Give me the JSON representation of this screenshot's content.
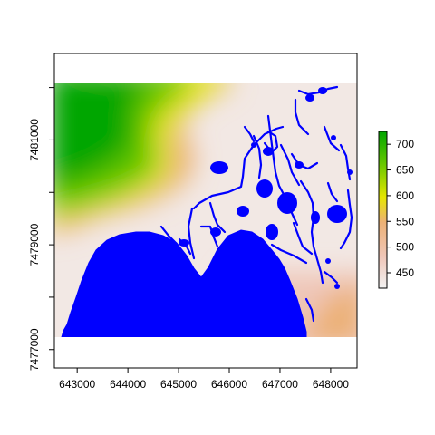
{
  "chart_data": {
    "type": "heatmap",
    "title": "",
    "xlabel": "",
    "ylabel": "",
    "xlim": [
      642550,
      648520
    ],
    "ylim": [
      7476650,
      7482650
    ],
    "x_ticks": [
      {
        "value": 643000,
        "label": "643000"
      },
      {
        "value": 644000,
        "label": "644000"
      },
      {
        "value": 645000,
        "label": "645000"
      },
      {
        "value": 646000,
        "label": "646000"
      },
      {
        "value": 647000,
        "label": "647000"
      },
      {
        "value": 648000,
        "label": "648000"
      }
    ],
    "y_ticks": [
      {
        "value": 7477000,
        "label": "7477000"
      },
      {
        "value": 7478000,
        "label": ""
      },
      {
        "value": 7479000,
        "label": "7479000"
      },
      {
        "value": 7480000,
        "label": ""
      },
      {
        "value": 7481000,
        "label": "7481000"
      },
      {
        "value": 7482000,
        "label": ""
      }
    ],
    "raster_extent": {
      "x": [
        642550,
        648520
      ],
      "y": [
        7477000,
        7482000
      ]
    },
    "legend": {
      "placement": "right",
      "range": [
        420,
        725
      ],
      "ticks": [
        {
          "value": 450,
          "label": "450"
        },
        {
          "value": 500,
          "label": "500"
        },
        {
          "value": 550,
          "label": "550"
        },
        {
          "value": 600,
          "label": "600"
        },
        {
          "value": 650,
          "label": "650"
        },
        {
          "value": 700,
          "label": "700"
        }
      ]
    },
    "colors": {
      "water": "#0000ff",
      "ramp": [
        "#f2f2f2",
        "#efc6b8",
        "#ecb176",
        "#e6e600",
        "#63c600",
        "#00a600"
      ]
    }
  }
}
